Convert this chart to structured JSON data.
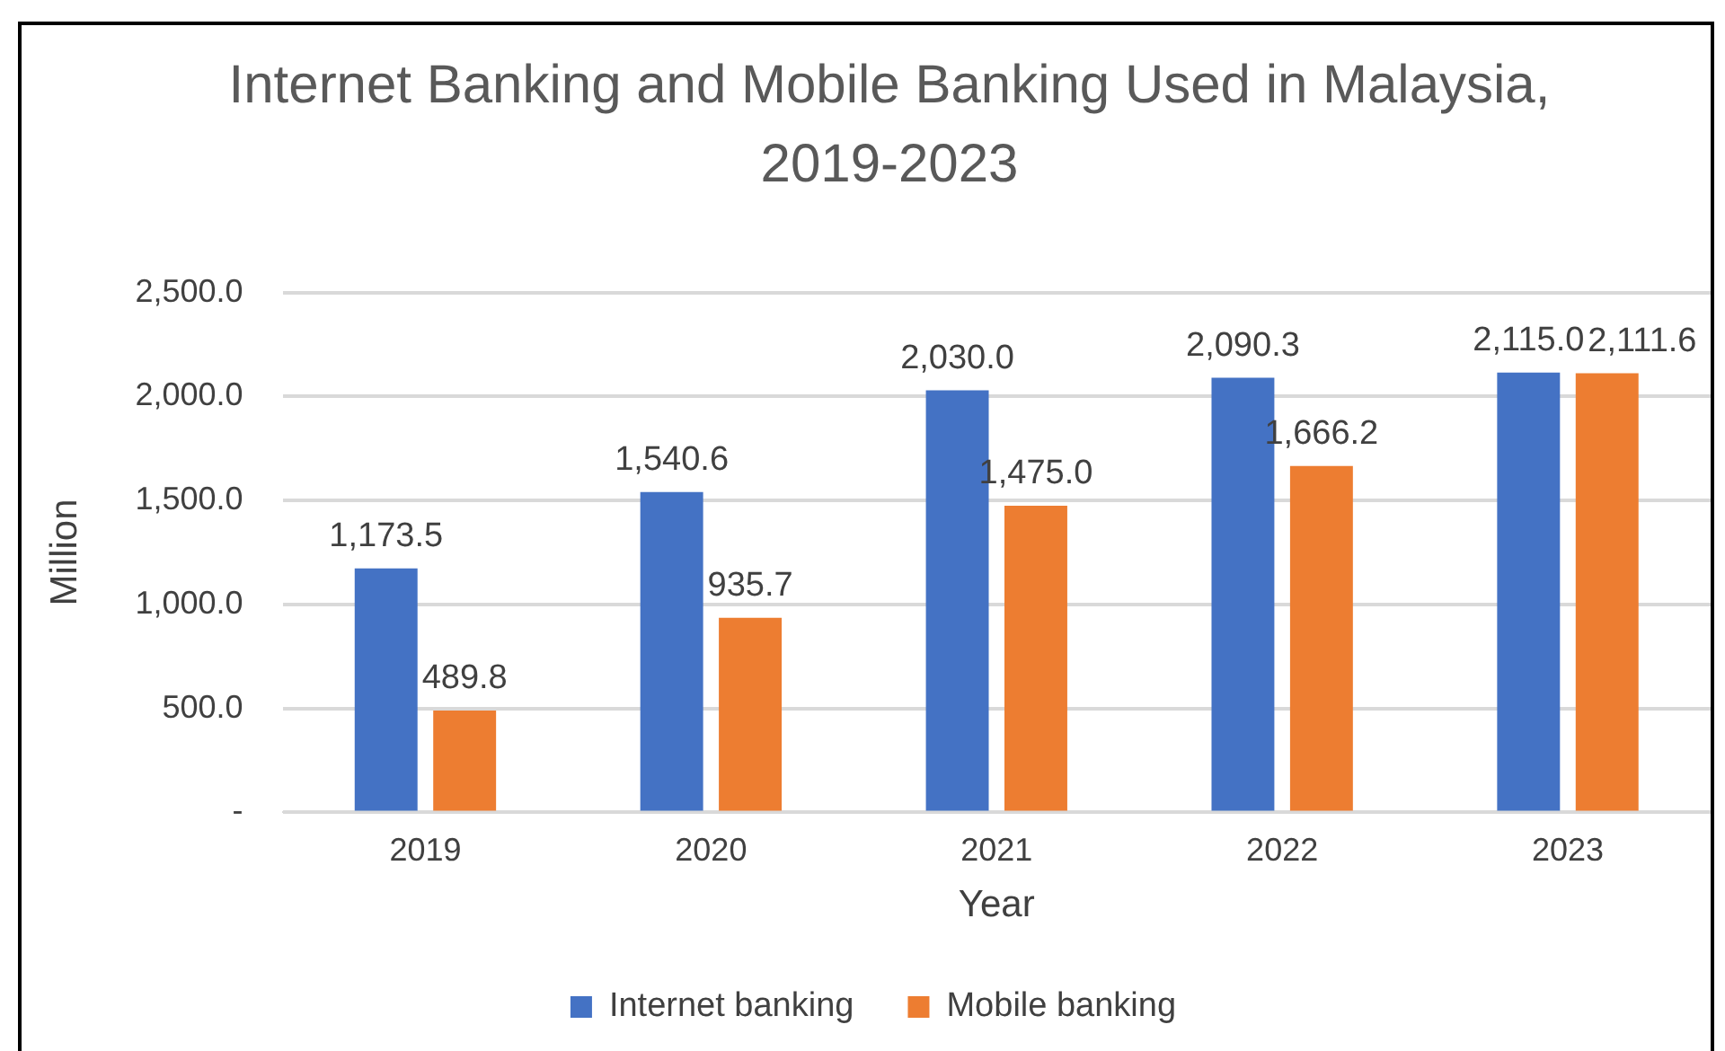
{
  "chart_data": {
    "type": "bar",
    "title": "Internet Banking and Mobile Banking Used in Malaysia, 2019-2023",
    "xlabel": "Year",
    "ylabel": "Million",
    "categories": [
      "2019",
      "2020",
      "2021",
      "2022",
      "2023"
    ],
    "series": [
      {
        "name": "Internet banking",
        "color": "#4472c4",
        "values": [
          1173.5,
          1540.6,
          2030.0,
          2090.3,
          2115.0
        ],
        "value_labels": [
          "1,173.5",
          "1,540.6",
          "2,030.0",
          "2,090.3",
          "2,115.0"
        ]
      },
      {
        "name": "Mobile banking",
        "color": "#ed7d31",
        "values": [
          489.8,
          935.7,
          1475.0,
          1666.2,
          2111.6
        ],
        "value_labels": [
          "489.8",
          "935.7",
          "1,475.0",
          "1,666.2",
          "2,111.6"
        ]
      }
    ],
    "ylim": [
      0,
      2500
    ],
    "yticks": [
      {
        "value": 0,
        "label": "-"
      },
      {
        "value": 500,
        "label": "500.0"
      },
      {
        "value": 1000,
        "label": "1,000.0"
      },
      {
        "value": 1500,
        "label": "1,500.0"
      },
      {
        "value": 2000,
        "label": "2,000.0"
      },
      {
        "value": 2500,
        "label": "2,500.0"
      }
    ],
    "grid": "y",
    "legend": "bottom"
  }
}
